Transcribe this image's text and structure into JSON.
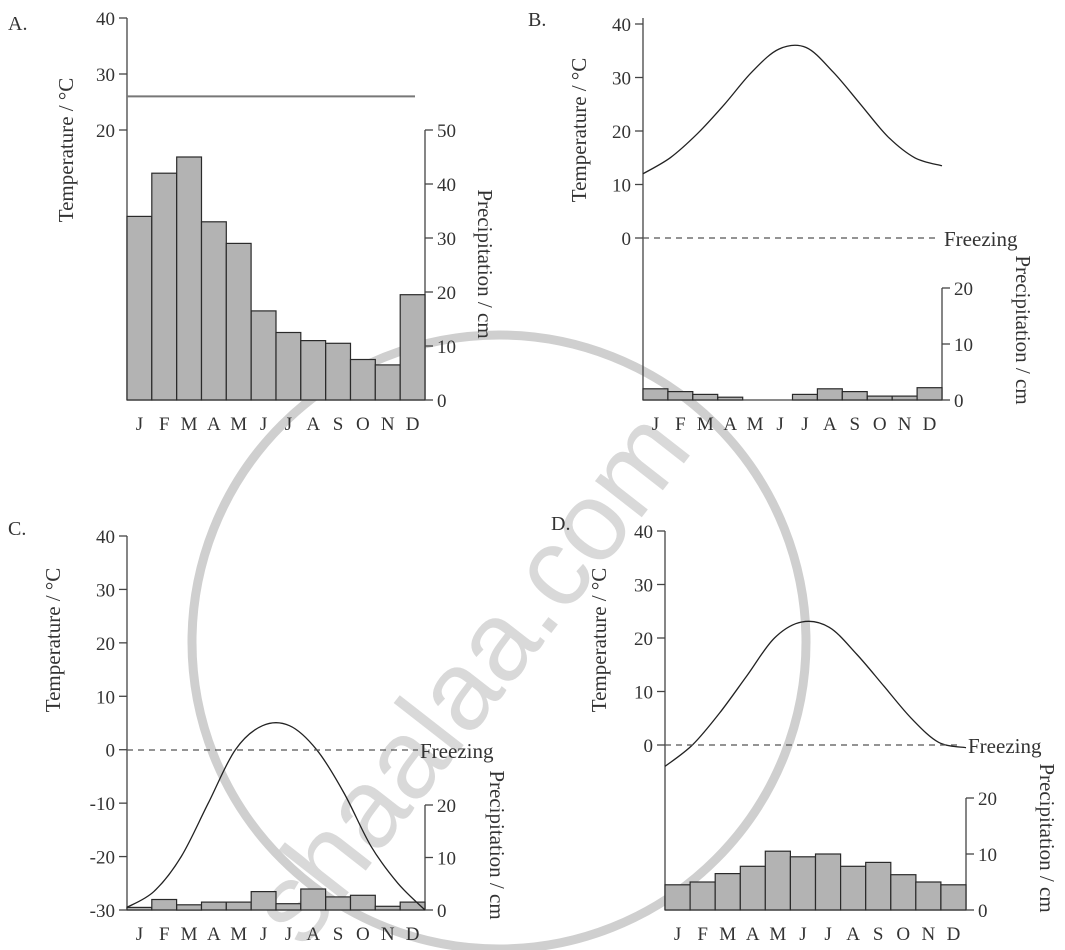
{
  "watermark": "shaalaa.com",
  "chart_data": [
    {
      "panel": "A.",
      "type": "bar",
      "categories": [
        "J",
        "F",
        "M",
        "A",
        "M",
        "J",
        "J",
        "A",
        "S",
        "O",
        "N",
        "D"
      ],
      "precipitation": [
        34,
        42,
        45,
        33,
        29,
        16.5,
        12.5,
        11,
        10.5,
        7.5,
        6.5,
        19.5
      ],
      "precip_ticks": [
        "0",
        "10",
        "20",
        "30",
        "40",
        "50"
      ],
      "precip_range": [
        0,
        50
      ],
      "temperature": [
        26,
        26,
        26,
        26,
        26,
        26,
        26,
        26,
        26,
        26,
        26,
        26
      ],
      "temp_ticks": [
        "20",
        "30",
        "40"
      ],
      "temp_range": [
        20,
        40
      ],
      "ylabel": "Temperature / °C",
      "ylabel2": "Precipitation / cm"
    },
    {
      "panel": "B.",
      "type": "bar",
      "categories": [
        "J",
        "F",
        "M",
        "A",
        "M",
        "J",
        "J",
        "A",
        "S",
        "O",
        "N",
        "D"
      ],
      "precipitation": [
        2,
        1.5,
        1,
        0.5,
        0,
        0,
        1,
        2,
        1.5,
        0.7,
        0.7,
        2.2
      ],
      "precip_ticks": [
        "0",
        "10",
        "20"
      ],
      "precip_range": [
        0,
        20
      ],
      "temperature": [
        12,
        15,
        19.5,
        25,
        31,
        35.3,
        35.6,
        31,
        25,
        19,
        15,
        13.5
      ],
      "temp_ticks": [
        "0",
        "10",
        "20",
        "30",
        "40"
      ],
      "temp_range": [
        0,
        40
      ],
      "freezing_label": "Freezing",
      "ylabel": "Temperature / °C",
      "ylabel2": "Precipitation / cm"
    },
    {
      "panel": "C.",
      "type": "bar",
      "categories": [
        "J",
        "F",
        "M",
        "A",
        "M",
        "J",
        "J",
        "A",
        "S",
        "O",
        "N",
        "D"
      ],
      "precipitation": [
        0.5,
        2,
        1,
        1.5,
        1.5,
        3.5,
        1.2,
        4,
        2.5,
        2.8,
        0.7,
        1.5
      ],
      "precip_ticks": [
        "0",
        "10",
        "20"
      ],
      "precip_range": [
        0,
        20
      ],
      "temperature": [
        -29.5,
        -26.5,
        -20,
        -10,
        0,
        4.5,
        4.5,
        0,
        -8,
        -18,
        -25,
        -30
      ],
      "temp_ticks": [
        "-30",
        "-20",
        "-10",
        "0",
        "10",
        "20",
        "30",
        "40"
      ],
      "temp_range": [
        -30,
        40
      ],
      "freezing_label": "Freezing",
      "ylabel": "Temperature / °C",
      "ylabel2": "Precipitation / cm"
    },
    {
      "panel": "D.",
      "type": "bar",
      "categories": [
        "J",
        "F",
        "M",
        "A",
        "M",
        "J",
        "J",
        "A",
        "S",
        "O",
        "N",
        "D"
      ],
      "precipitation": [
        4.5,
        5,
        6.5,
        7.8,
        10.5,
        9.5,
        10,
        7.8,
        8.5,
        6.3,
        5,
        4.5
      ],
      "precip_ticks": [
        "0",
        "10",
        "20"
      ],
      "precip_range": [
        0,
        20
      ],
      "temperature": [
        -4,
        0,
        6,
        13,
        20,
        23,
        22,
        17,
        11,
        5,
        0.5,
        -0.5
      ],
      "temp_ticks": [
        "0",
        "10",
        "20",
        "30",
        "40"
      ],
      "temp_range": [
        0,
        40
      ],
      "freezing_label": "Freezing",
      "ylabel": "Temperature / °C",
      "ylabel2": "Precipitation / cm"
    }
  ]
}
